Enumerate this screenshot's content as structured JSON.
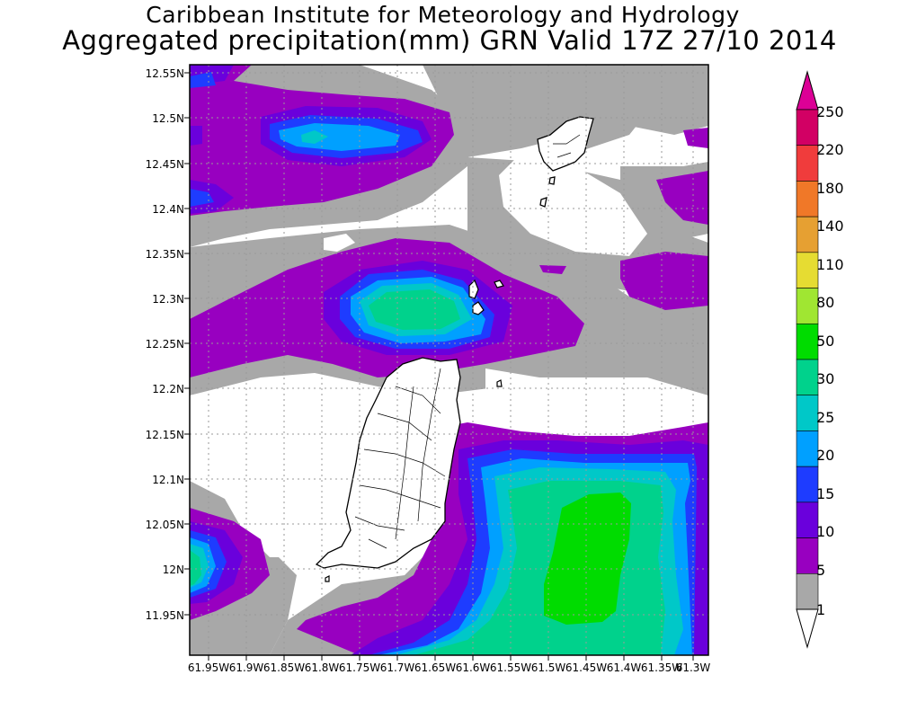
{
  "title": "Caribbean Institute for Meteorology and Hydrology",
  "subtitle": "Aggregated precipitation(mm) GRN Valid 17Z 27/10 2014",
  "map": {
    "lat_ticks": [
      "12.55N",
      "12.5N",
      "12.45N",
      "12.4N",
      "12.35N",
      "12.3N",
      "12.25N",
      "12.2N",
      "12.15N",
      "12.1N",
      "12.05N",
      "12N",
      "11.95N"
    ],
    "lon_ticks": [
      "61.95W",
      "61.9W",
      "61.85W",
      "61.8W",
      "61.75W",
      "61.7W",
      "61.65W",
      "61.6W",
      "61.55W",
      "61.5W",
      "61.45W",
      "61.4W",
      "61.35W",
      "61.3W"
    ],
    "grid": true,
    "colors": {
      "1-5": "#a8a8a8",
      "5-10": "#9800c0",
      "10-15": "#6a00dc",
      "15-20": "#1e3cff",
      "20-25": "#00a0ff",
      "25-30": "#00c8c8",
      "30-50": "#00d28c",
      "50-80": "#00dc00"
    }
  },
  "colorbar": {
    "labels": [
      "250",
      "220",
      "180",
      "140",
      "110",
      "80",
      "50",
      "30",
      "25",
      "20",
      "15",
      "10",
      "5",
      "1"
    ],
    "colors": [
      "#d20064",
      "#f03c3c",
      "#f07828",
      "#e6a032",
      "#e6dc32",
      "#a0e632",
      "#00dc00",
      "#00d28c",
      "#00c8c8",
      "#00a0ff",
      "#1e3cff",
      "#6a00dc",
      "#9800c0",
      "#a8a8a8"
    ],
    "top_color": "#dc0096"
  }
}
